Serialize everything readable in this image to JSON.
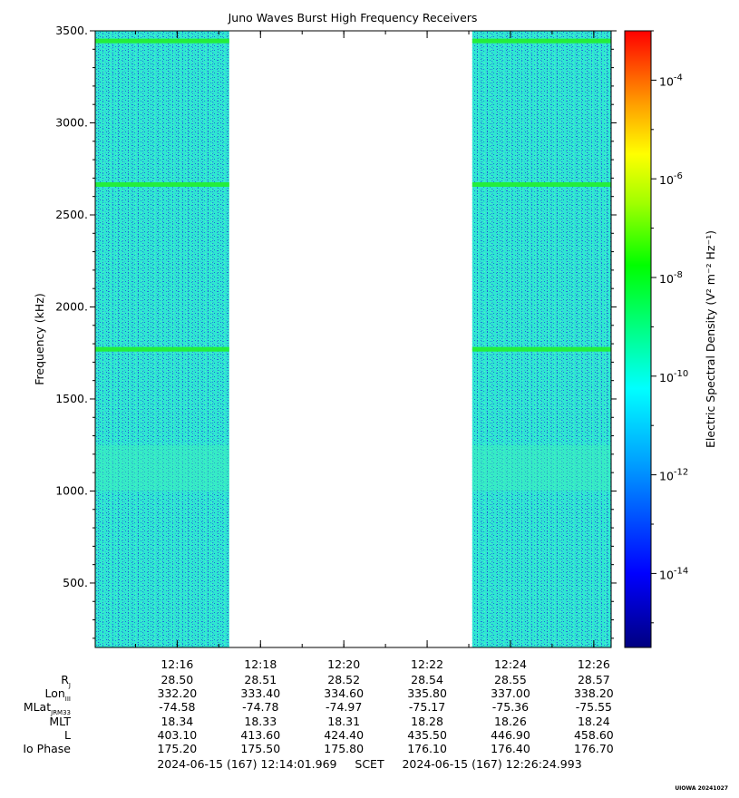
{
  "chart_data": {
    "type": "heatmap",
    "title": "Juno Waves Burst High Frequency Receivers",
    "ylabel": "Frequency (kHz)",
    "ylim": [
      150,
      3500
    ],
    "y_ticks": [
      500,
      1000,
      1500,
      2000,
      2500,
      3000,
      3500
    ],
    "y_tick_labels": [
      "500.",
      "1000.",
      "1500.",
      "2000.",
      "2500.",
      "3000.",
      "3500."
    ],
    "x_tick_labels": [
      "12:16",
      "12:18",
      "12:20",
      "12:22",
      "12:24",
      "12:26"
    ],
    "time_start": "12:14:01.969",
    "time_end": "12:26:24.993",
    "data_segments": [
      {
        "start": "12:14:01.969",
        "end": "12:17:15"
      },
      {
        "start": "12:23:05",
        "end": "12:26:24.993"
      }
    ],
    "emission_lines_khz": [
      1770,
      2665,
      3445
    ],
    "enhanced_band_khz": [
      1000,
      1250
    ],
    "colorbar": {
      "label": "Electric Spectral Density (V² m⁻² Hz⁻¹)",
      "scale": "log",
      "range_exp": [
        -15.5,
        -3
      ],
      "tick_labels": [
        "10",
        "10",
        "10",
        "10",
        "10",
        "10"
      ],
      "tick_exponents": [
        "-4",
        "-6",
        "-8",
        "-10",
        "-12",
        "-14"
      ],
      "tick_values_exp": [
        -4,
        -6,
        -8,
        -10,
        -12,
        -14
      ]
    }
  },
  "ephemeris": {
    "labels": [
      "R",
      "Lon",
      "MLat",
      "MLT",
      "L",
      "Io Phase"
    ],
    "label_subs": [
      "J",
      "III",
      "JRM33",
      "",
      "",
      ""
    ],
    "rows": [
      [
        "28.50",
        "28.51",
        "28.52",
        "28.54",
        "28.55",
        "28.57"
      ],
      [
        "332.20",
        "333.40",
        "334.60",
        "335.80",
        "337.00",
        "338.20"
      ],
      [
        "-74.58",
        "-74.78",
        "-74.97",
        "-75.17",
        "-75.36",
        "-75.55"
      ],
      [
        "18.34",
        "18.33",
        "18.31",
        "18.28",
        "18.26",
        "18.24"
      ],
      [
        "403.10",
        "413.60",
        "424.40",
        "435.50",
        "446.90",
        "458.60"
      ],
      [
        "175.20",
        "175.50",
        "175.80",
        "176.10",
        "176.40",
        "176.70"
      ]
    ]
  },
  "time_range": {
    "start": "2024-06-15 (167) 12:14:01.969",
    "frame": "SCET",
    "end": "2024-06-15 (167) 12:26:24.993"
  },
  "footer": "UIOWA 20241027",
  "colors": {
    "background_level": "#2ee8d0",
    "line": "#24ee3c",
    "gap": "#ffffff"
  }
}
